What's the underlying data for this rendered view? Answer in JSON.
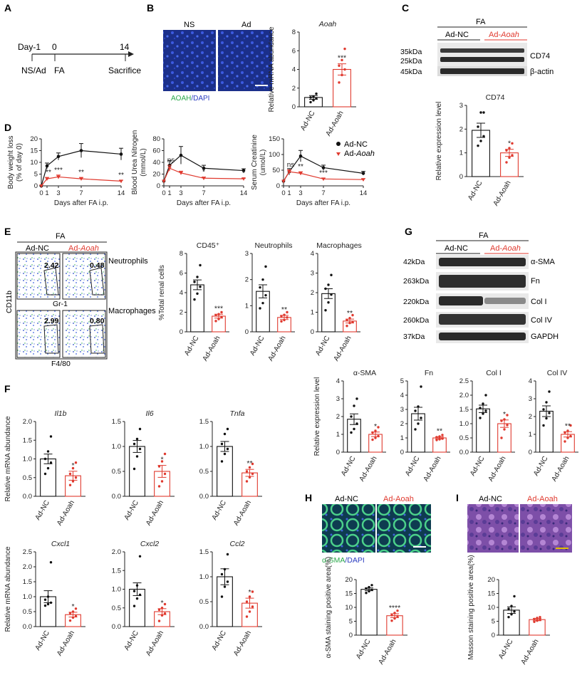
{
  "colors": {
    "ctrl": "#111111",
    "trt": "#e03a2f",
    "wb_bg": "#e9e9e9",
    "band": "#3a3a3a"
  },
  "panels": {
    "A": {
      "letter": "A",
      "day_m1": "Day-1",
      "day0": "0",
      "day14": "14",
      "ns_ad": "NS/Ad",
      "fa": "FA",
      "sacrifice": "Sacrifice"
    },
    "B": {
      "letter": "B",
      "ns": "NS",
      "ad": "Ad",
      "stain_green": "AOAH",
      "stain_blue": "/DAPI"
    },
    "C": {
      "letter": "C",
      "fa": "FA",
      "adnc": "Ad-NC",
      "adaoah_pre": "Ad-",
      "adaoah_it": "Aoah",
      "kda35": "35kDa",
      "kda25": "25kDa",
      "kda45": "45kDa",
      "cd74": "CD74",
      "actin": "β-actin"
    },
    "D": {
      "letter": "D",
      "leg_nc": "Ad-NC",
      "leg_aoah_pre": "Ad-",
      "leg_aoah_it": "Aoah"
    },
    "E": {
      "letter": "E",
      "fa": "FA",
      "adnc": "Ad-NC",
      "adaoah_pre": "Ad-",
      "adaoah_it": "Aoah",
      "neutro": "Neutrophils",
      "macro": "Macrophages",
      "cd11b": "CD11b",
      "gr1": "Gr-1",
      "f480": "F4/80",
      "q1": "2.42",
      "q2": "0.48",
      "q3": "2.99",
      "q4": "0.80"
    },
    "F": {
      "letter": "F"
    },
    "G": {
      "letter": "G",
      "fa": "FA",
      "adnc": "Ad-NC",
      "adaoah_pre": "Ad-",
      "adaoah_it": "Aoah",
      "k42": "42kDa",
      "k263": "263kDa",
      "k220": "220kDa",
      "k260": "260kDa",
      "k37": "37kDa",
      "asma": "α-SMA",
      "fn": "Fn",
      "col1": "Col I",
      "col4": "Col IV",
      "gapdh": "GAPDH"
    },
    "H": {
      "letter": "H",
      "adnc": "Ad-NC",
      "adaoah": "Ad-Aoah",
      "stain_green": "α-SMA",
      "stain_blue": "/DAPI"
    },
    "I": {
      "letter": "I",
      "adnc": "Ad-NC",
      "adaoah": "Ad-Aoah"
    }
  },
  "chart_data": [
    {
      "id": "B",
      "type": "bar",
      "title": "Aoah",
      "ylabel": "Relative mRNA abundance",
      "ylim": [
        0,
        8
      ],
      "yticks": [
        "0",
        "2",
        "4",
        "6",
        "8"
      ],
      "categories": [
        "Ad-NC",
        "Ad-Aoah"
      ],
      "values": [
        1.0,
        4.0
      ],
      "errors": [
        0.2,
        0.6
      ],
      "points": [
        [
          0.5,
          0.7,
          0.9,
          1.0,
          1.1,
          1.4
        ],
        [
          2.6,
          3.4,
          4.0,
          4.4,
          5.0,
          6.2
        ]
      ],
      "sig": [
        "",
        "***"
      ]
    },
    {
      "id": "C",
      "type": "bar",
      "title": "CD74",
      "ylabel": "Relative expression level",
      "ylim": [
        0,
        3
      ],
      "yticks": [
        "0",
        "1",
        "2",
        "3"
      ],
      "categories": [
        "Ad-NC",
        "Ad-Aoah"
      ],
      "values": [
        1.95,
        1.0
      ],
      "errors": [
        0.3,
        0.15
      ],
      "points": [
        [
          1.3,
          1.5,
          1.7,
          2.1,
          2.7,
          2.7
        ],
        [
          0.6,
          0.8,
          0.9,
          1.1,
          1.2,
          1.4
        ]
      ],
      "sig": [
        "",
        "*"
      ]
    },
    {
      "id": "D1",
      "type": "line",
      "ylabel": "Body weight loss (% of day 0)",
      "xlabel": "Days after FA i.p.",
      "xticks": [
        "0",
        "1",
        "3",
        "7",
        "14"
      ],
      "ylim": [
        0,
        20
      ],
      "yticks": [
        "0",
        "5",
        "10",
        "15",
        "20"
      ],
      "x": [
        0,
        1,
        3,
        7,
        14
      ],
      "series": [
        {
          "name": "Ad-NC",
          "values": [
            0,
            8.5,
            12.5,
            15,
            13.5
          ],
          "errors": [
            0,
            1.2,
            1.5,
            3,
            2.5
          ]
        },
        {
          "name": "Ad-Aoah",
          "values": [
            0,
            3,
            3.8,
            3,
            2
          ],
          "errors": [
            0,
            0.6,
            0.8,
            0.6,
            0.4
          ]
        }
      ],
      "sig": [
        "**",
        "***",
        "**",
        "**"
      ]
    },
    {
      "id": "D2",
      "type": "line",
      "ylabel": "Blood Urea Nitrogen (mmol/L)",
      "xlabel": "Days after FA i.p.",
      "xticks": [
        "0",
        "1",
        "3",
        "7",
        "14"
      ],
      "ylim": [
        0,
        80
      ],
      "yticks": [
        "0",
        "20",
        "40",
        "60",
        "80"
      ],
      "x": [
        0,
        1,
        3,
        7,
        14
      ],
      "series": [
        {
          "name": "Ad-NC",
          "values": [
            8,
            35,
            52,
            30,
            26
          ],
          "errors": [
            0,
            8,
            15,
            5,
            3
          ]
        },
        {
          "name": "Ad-Aoah",
          "values": [
            8,
            30,
            22,
            13,
            12
          ],
          "errors": [
            0,
            5,
            3,
            2,
            1
          ]
        }
      ],
      "sig": [
        "ns",
        "",
        "*",
        "*"
      ]
    },
    {
      "id": "D3",
      "type": "line",
      "ylabel": "Serum Creatinine (umol/L)",
      "xlabel": "Days after FA i.p.",
      "xticks": [
        "0",
        "1",
        "3",
        "7",
        "14"
      ],
      "ylim": [
        0,
        150
      ],
      "yticks": [
        "0",
        "50",
        "100",
        "150"
      ],
      "x": [
        0,
        1,
        3,
        7,
        14
      ],
      "series": [
        {
          "name": "Ad-NC",
          "values": [
            15,
            45,
            95,
            58,
            40
          ],
          "errors": [
            0,
            10,
            18,
            8,
            6
          ]
        },
        {
          "name": "Ad-Aoah",
          "values": [
            15,
            45,
            40,
            22,
            20
          ],
          "errors": [
            0,
            6,
            5,
            3,
            3
          ]
        }
      ],
      "sig": [
        "ns",
        "**",
        "***",
        "*"
      ]
    },
    {
      "id": "E1",
      "type": "bar",
      "title": "CD45⁺",
      "ylabel": "%Total renal cells",
      "ylim": [
        0,
        8
      ],
      "yticks": [
        "0",
        "2",
        "4",
        "6",
        "8"
      ],
      "categories": [
        "Ad-NC",
        "Ad-Aoah"
      ],
      "values": [
        4.8,
        1.6
      ],
      "errors": [
        0.5,
        0.2
      ],
      "points": [
        [
          3.3,
          3.9,
          4.6,
          5.1,
          5.6,
          6.8
        ],
        [
          1.1,
          1.3,
          1.5,
          1.7,
          1.8,
          2.0
        ]
      ],
      "sig": [
        "",
        "***"
      ]
    },
    {
      "id": "E2",
      "type": "bar",
      "title": "Neutrophils",
      "ylim": [
        0,
        3
      ],
      "yticks": [
        "0",
        "1",
        "2",
        "3"
      ],
      "categories": [
        "Ad-NC",
        "Ad-Aoah"
      ],
      "values": [
        1.55,
        0.55
      ],
      "errors": [
        0.25,
        0.08
      ],
      "points": [
        [
          0.9,
          1.1,
          1.4,
          1.7,
          2.0,
          2.5
        ],
        [
          0.4,
          0.45,
          0.55,
          0.6,
          0.65,
          0.75
        ]
      ],
      "sig": [
        "",
        "**"
      ]
    },
    {
      "id": "E3",
      "type": "bar",
      "title": "Macrophages",
      "ylim": [
        0,
        4
      ],
      "yticks": [
        "0",
        "1",
        "2",
        "3",
        "4"
      ],
      "categories": [
        "Ad-NC",
        "Ad-Aoah"
      ],
      "values": [
        1.95,
        0.55
      ],
      "errors": [
        0.25,
        0.1
      ],
      "points": [
        [
          1.1,
          1.5,
          1.9,
          2.2,
          2.4,
          2.9
        ],
        [
          0.3,
          0.45,
          0.5,
          0.6,
          0.7,
          0.85
        ]
      ],
      "sig": [
        "",
        "**"
      ]
    },
    {
      "id": "F1",
      "type": "bar",
      "title": "Il1b",
      "ylabel": "Relative mRNA abundance",
      "ylim": [
        0,
        2
      ],
      "yticks": [
        "0.0",
        "0.5",
        "1.0",
        "1.5",
        "2.0"
      ],
      "categories": [
        "Ad-NC",
        "Ad-Aoah"
      ],
      "values": [
        1.0,
        0.55
      ],
      "errors": [
        0.13,
        0.12
      ],
      "points": [
        [
          0.6,
          0.75,
          0.9,
          1.0,
          1.2,
          1.6
        ],
        [
          0.3,
          0.4,
          0.5,
          0.6,
          0.75,
          0.9
        ]
      ],
      "sig": [
        "",
        "*"
      ]
    },
    {
      "id": "F2",
      "type": "bar",
      "title": "Il6",
      "ylim": [
        0,
        1.5
      ],
      "yticks": [
        "0.0",
        "0.5",
        "1.0",
        "1.5"
      ],
      "categories": [
        "Ad-NC",
        "Ad-Aoah"
      ],
      "values": [
        1.0,
        0.5
      ],
      "errors": [
        0.12,
        0.12
      ],
      "points": [
        [
          0.55,
          0.8,
          0.95,
          1.05,
          1.15,
          1.35
        ],
        [
          0.2,
          0.3,
          0.45,
          0.6,
          0.7,
          0.85
        ]
      ],
      "sig": [
        "",
        "*"
      ]
    },
    {
      "id": "F3",
      "type": "bar",
      "title": "Tnfa",
      "ylim": [
        0,
        1.5
      ],
      "yticks": [
        "0.0",
        "0.5",
        "1.0",
        "1.5"
      ],
      "categories": [
        "Ad-NC",
        "Ad-Aoah"
      ],
      "values": [
        1.0,
        0.47
      ],
      "errors": [
        0.1,
        0.07
      ],
      "points": [
        [
          0.7,
          0.85,
          0.95,
          1.05,
          1.25,
          1.35
        ],
        [
          0.3,
          0.38,
          0.45,
          0.5,
          0.58,
          0.65
        ]
      ],
      "sig": [
        "",
        "**"
      ]
    },
    {
      "id": "F4",
      "type": "bar",
      "title": "Cxcl1",
      "ylabel": "Relative mRNA abundance",
      "ylim": [
        0,
        2.5
      ],
      "yticks": [
        "0.0",
        "0.5",
        "1.0",
        "1.5",
        "2.0",
        "2.5"
      ],
      "categories": [
        "Ad-NC",
        "Ad-Aoah"
      ],
      "values": [
        1.0,
        0.4
      ],
      "errors": [
        0.2,
        0.08
      ],
      "points": [
        [
          0.7,
          0.75,
          0.8,
          0.9,
          1.0,
          2.15
        ],
        [
          0.2,
          0.3,
          0.35,
          0.45,
          0.5,
          0.6
        ]
      ],
      "sig": [
        "",
        "*"
      ]
    },
    {
      "id": "F5",
      "type": "bar",
      "title": "Cxcl2",
      "ylim": [
        0,
        2.0
      ],
      "yticks": [
        "0.0",
        "0.5",
        "1.0",
        "1.5",
        "2.0"
      ],
      "categories": [
        "Ad-NC",
        "Ad-Aoah"
      ],
      "values": [
        1.0,
        0.4
      ],
      "errors": [
        0.17,
        0.08
      ],
      "points": [
        [
          0.55,
          0.75,
          0.85,
          0.95,
          1.1,
          1.88
        ],
        [
          0.15,
          0.3,
          0.35,
          0.45,
          0.5,
          0.6
        ]
      ],
      "sig": [
        "",
        "*"
      ]
    },
    {
      "id": "F6",
      "type": "bar",
      "title": "Ccl2",
      "ylim": [
        0,
        1.5
      ],
      "yticks": [
        "0.0",
        "0.5",
        "1.0",
        "1.5"
      ],
      "categories": [
        "Ad-NC",
        "Ad-Aoah"
      ],
      "values": [
        1.0,
        0.47
      ],
      "errors": [
        0.16,
        0.1
      ],
      "points": [
        [
          0.6,
          0.8,
          0.9,
          1.05,
          1.15,
          1.45
        ],
        [
          0.2,
          0.3,
          0.4,
          0.5,
          0.6,
          0.7
        ]
      ],
      "sig": [
        "",
        "*"
      ]
    },
    {
      "id": "G1",
      "type": "bar",
      "title": "α-SMA",
      "ylabel": "Relative expression level",
      "ylim": [
        0,
        4
      ],
      "yticks": [
        "0",
        "1",
        "2",
        "3",
        "4"
      ],
      "categories": [
        "Ad-NC",
        "Ad-Aoah"
      ],
      "values": [
        1.85,
        1.0
      ],
      "errors": [
        0.3,
        0.13
      ],
      "points": [
        [
          1.1,
          1.3,
          1.6,
          2.0,
          2.6,
          3.0
        ],
        [
          0.7,
          0.8,
          0.9,
          1.1,
          1.2,
          1.4
        ]
      ],
      "sig": [
        "",
        "*"
      ]
    },
    {
      "id": "G2",
      "type": "bar",
      "title": "Fn",
      "ylim": [
        0,
        5
      ],
      "yticks": [
        "0",
        "1",
        "2",
        "3",
        "4",
        "5"
      ],
      "categories": [
        "Ad-NC",
        "Ad-Aoah"
      ],
      "values": [
        2.7,
        1.0
      ],
      "errors": [
        0.45,
        0.07
      ],
      "points": [
        [
          1.6,
          2.0,
          2.4,
          2.9,
          3.2,
          4.6
        ],
        [
          0.85,
          0.9,
          0.95,
          1.05,
          1.1,
          1.2
        ]
      ],
      "sig": [
        "",
        "**"
      ]
    },
    {
      "id": "G3",
      "type": "bar",
      "title": "Col I",
      "ylim": [
        0,
        2.5
      ],
      "yticks": [
        "0.0",
        "0.5",
        "1.0",
        "1.5",
        "2.0",
        "2.5"
      ],
      "categories": [
        "Ad-NC",
        "Ad-Aoah"
      ],
      "values": [
        1.52,
        1.0
      ],
      "errors": [
        0.13,
        0.13
      ],
      "points": [
        [
          1.2,
          1.35,
          1.45,
          1.55,
          1.7,
          2.0
        ],
        [
          0.5,
          0.8,
          0.95,
          1.1,
          1.15,
          1.3
        ]
      ],
      "sig": [
        "",
        "*"
      ]
    },
    {
      "id": "G4",
      "type": "bar",
      "title": "Col IV",
      "ylim": [
        0,
        4
      ],
      "yticks": [
        "0",
        "1",
        "2",
        "3",
        "4"
      ],
      "categories": [
        "Ad-NC",
        "Ad-Aoah"
      ],
      "values": [
        2.3,
        1.0
      ],
      "errors": [
        0.3,
        0.15
      ],
      "points": [
        [
          1.5,
          1.9,
          2.2,
          2.4,
          2.8,
          3.4
        ],
        [
          0.6,
          0.8,
          0.9,
          1.1,
          1.2,
          1.5
        ]
      ],
      "sig": [
        "",
        "**"
      ]
    },
    {
      "id": "H",
      "type": "bar",
      "ylabel": "α-SMA staining positive area(%)",
      "ylim": [
        0,
        20
      ],
      "yticks": [
        "0",
        "5",
        "10",
        "15",
        "20"
      ],
      "categories": [
        "Ad-NC",
        "Ad-Aoah"
      ],
      "values": [
        16.5,
        7.0
      ],
      "errors": [
        0.5,
        0.7
      ],
      "points": [
        [
          15.2,
          15.8,
          16.3,
          16.8,
          17.3,
          18.0
        ],
        [
          5.2,
          6.0,
          6.8,
          7.2,
          8.0,
          8.8
        ]
      ],
      "sig": [
        "",
        "****"
      ]
    },
    {
      "id": "I",
      "type": "bar",
      "ylabel": "Masson staining positive area(%)",
      "ylim": [
        0,
        20
      ],
      "yticks": [
        "0",
        "5",
        "10",
        "15",
        "20"
      ],
      "categories": [
        "Ad-NC",
        "Ad-Aoah"
      ],
      "values": [
        9.0,
        5.6
      ],
      "errors": [
        1.2,
        0.4
      ],
      "points": [
        [
          6.5,
          7.5,
          8.5,
          9.5,
          10.5,
          14.0
        ],
        [
          4.8,
          5.2,
          5.5,
          5.8,
          6.2,
          6.5
        ]
      ],
      "sig": [
        "",
        ""
      ]
    }
  ]
}
